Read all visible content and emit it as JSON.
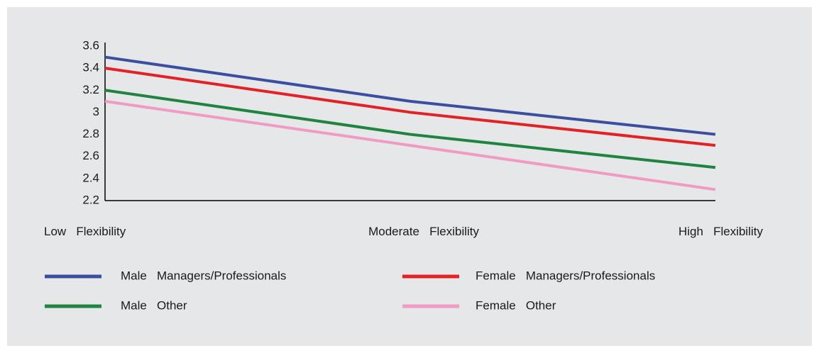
{
  "chart_data": {
    "type": "line",
    "categories": [
      "Low   Flexibility",
      "Moderate   Flexibility",
      "High   Flexibility"
    ],
    "ylim": [
      2.2,
      3.6
    ],
    "yticks": [
      2.2,
      2.4,
      2.6,
      2.8,
      3,
      3.2,
      3.4,
      3.6
    ],
    "ytick_labels": [
      "2.2",
      "2.4",
      "2.6",
      "2.8",
      "3",
      "3.2",
      "3.4",
      "3.6"
    ],
    "grid": false,
    "legend_position": "bottom",
    "series": [
      {
        "name": "Male   Managers/Professionals",
        "color": "#3a4fa0",
        "values": [
          3.5,
          3.1,
          2.8
        ]
      },
      {
        "name": "Female   Managers/Professionals",
        "color": "#e32228",
        "values": [
          3.4,
          3.0,
          2.7
        ]
      },
      {
        "name": "Male   Other",
        "color": "#1e8440",
        "values": [
          3.2,
          2.8,
          2.5
        ]
      },
      {
        "name": "Female   Other",
        "color": "#f09ac4",
        "values": [
          3.1,
          2.7,
          2.3
        ]
      }
    ]
  }
}
